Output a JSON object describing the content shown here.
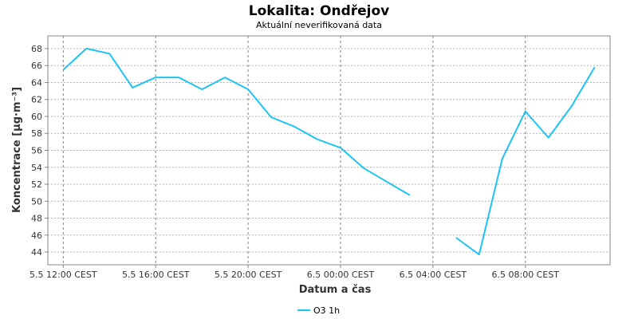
{
  "chart_data": {
    "type": "line",
    "title": "Lokalita: Ondřejov",
    "subtitle": "Aktuální neverifikovaná data",
    "xlabel": "Datum a čas",
    "ylabel": "Koncentrace [µg·m⁻³]",
    "ylim": [
      42.5,
      69.5
    ],
    "y_ticks": [
      44,
      46,
      48,
      50,
      52,
      54,
      56,
      58,
      60,
      62,
      64,
      66,
      68
    ],
    "xlim": [
      "5.5 11:20",
      "6.5 11:40"
    ],
    "x_ticks": [
      {
        "x": "5.5 12:00",
        "label": "5.5 12:00 CEST"
      },
      {
        "x": "5.5 16:00",
        "label": "5.5 16:00 CEST"
      },
      {
        "x": "5.5 20:00",
        "label": "5.5 20:00 CEST"
      },
      {
        "x": "6.5 00:00",
        "label": "6.5 00:00 CEST"
      },
      {
        "x": "6.5 04:00",
        "label": "6.5 04:00 CEST"
      },
      {
        "x": "6.5 08:00",
        "label": "6.5 08:00 CEST"
      }
    ],
    "grid": true,
    "legend_position": "bottom-center",
    "series": [
      {
        "name": "O3 1h",
        "color": "#1ec3f5",
        "points": [
          {
            "x": "5.5 12:00",
            "y": 65.5
          },
          {
            "x": "5.5 13:00",
            "y": 68.0
          },
          {
            "x": "5.5 14:00",
            "y": 67.4
          },
          {
            "x": "5.5 15:00",
            "y": 63.4
          },
          {
            "x": "5.5 16:00",
            "y": 64.6
          },
          {
            "x": "5.5 17:00",
            "y": 64.6
          },
          {
            "x": "5.5 18:00",
            "y": 63.2
          },
          {
            "x": "5.5 19:00",
            "y": 64.6
          },
          {
            "x": "5.5 20:00",
            "y": 63.2
          },
          {
            "x": "5.5 21:00",
            "y": 59.9
          },
          {
            "x": "5.5 22:00",
            "y": 58.8
          },
          {
            "x": "5.5 23:00",
            "y": 57.3
          },
          {
            "x": "6.5 00:00",
            "y": 56.3
          },
          {
            "x": "6.5 01:00",
            "y": 53.9
          },
          {
            "x": "6.5 02:00",
            "y": 52.3
          },
          {
            "x": "6.5 03:00",
            "y": 50.7
          },
          {
            "x": "6.5 04:00",
            "y": null
          },
          {
            "x": "6.5 05:00",
            "y": 45.7
          },
          {
            "x": "6.5 06:00",
            "y": 43.7
          },
          {
            "x": "6.5 07:00",
            "y": 55.0
          },
          {
            "x": "6.5 08:00",
            "y": 60.6
          },
          {
            "x": "6.5 09:00",
            "y": 57.5
          },
          {
            "x": "6.5 10:00",
            "y": 61.2
          },
          {
            "x": "6.5 11:00",
            "y": 65.8
          }
        ]
      }
    ]
  }
}
